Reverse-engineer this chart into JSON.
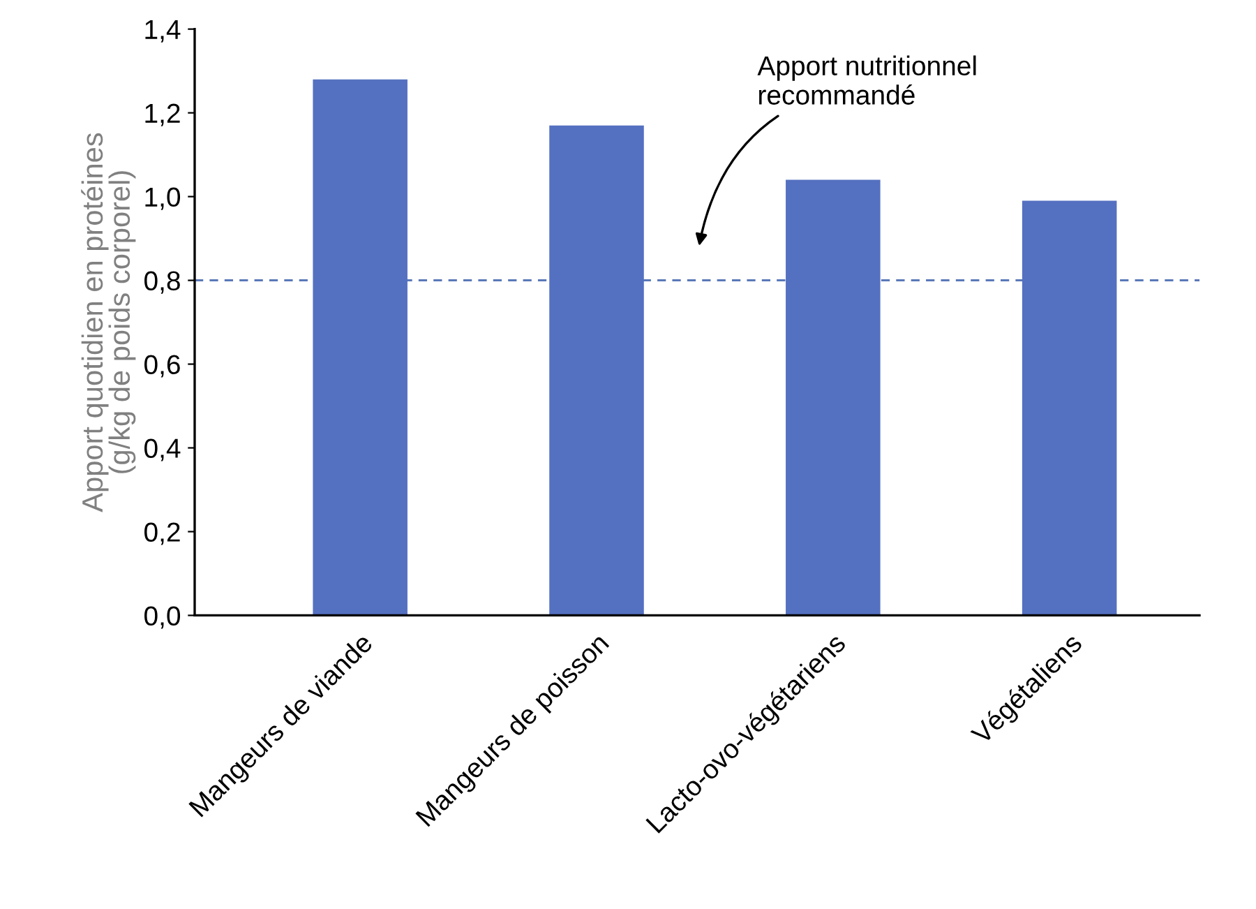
{
  "chart_data": {
    "type": "bar",
    "ylabel": "Apport quotidien en protéines\n(g/kg de poids corporel)",
    "categories": [
      "Mangeurs de viande",
      "Mangeurs de poisson",
      "Lacto-ovo-végétariens",
      "Végétaliens"
    ],
    "values": [
      1.28,
      1.17,
      1.04,
      0.99
    ],
    "color": "#5470c0",
    "ylim": [
      0,
      1.4
    ],
    "yticks": [
      {
        "value": 0,
        "label": "0,0"
      },
      {
        "value": 0.2,
        "label": "0,2"
      },
      {
        "value": 0.4,
        "label": "0,4"
      },
      {
        "value": 0.6,
        "label": "0,6"
      },
      {
        "value": 0.8,
        "label": "0,8"
      },
      {
        "value": 1.0,
        "label": "1,0"
      },
      {
        "value": 1.2,
        "label": "1,2"
      },
      {
        "value": 1.4,
        "label": "1,4"
      }
    ],
    "ref_lines": [
      {
        "axis": "y",
        "value": 0.8,
        "color": "#5a78b8",
        "line_style": "dashed"
      }
    ],
    "annotations": [
      "Apport nutritionnel\nrecommandé"
    ],
    "grid": false,
    "legend": false
  }
}
